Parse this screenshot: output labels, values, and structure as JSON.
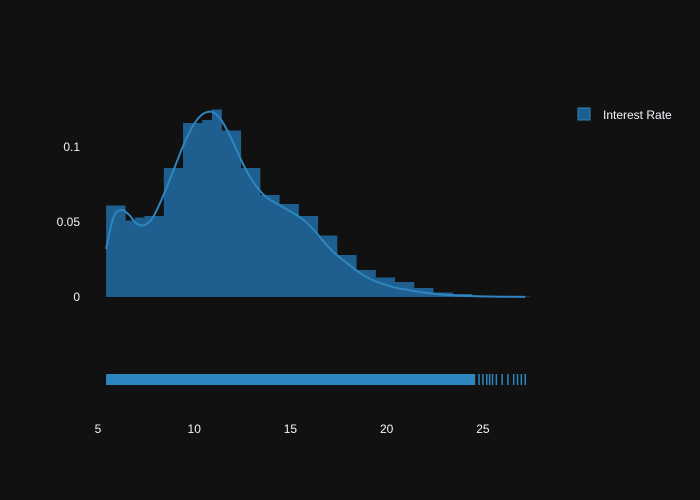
{
  "chart_data": {
    "type": "histogram",
    "title": "",
    "xlabel": "",
    "ylabel": "",
    "xlim": [
      5,
      27.5
    ],
    "ylim": [
      -0.012,
      0.135
    ],
    "grid": false,
    "legend_placement": "top-right",
    "background": "#111111",
    "series": [
      {
        "name": "Interest Rate",
        "color": "#1f5f8f",
        "line_color": "#2e86c1",
        "bins": [
          {
            "x0": 5.42,
            "x1": 6.42,
            "value": 0.061
          },
          {
            "x0": 6.42,
            "x1": 6.92,
            "value": 0.051
          },
          {
            "x0": 6.92,
            "x1": 7.42,
            "value": 0.053
          },
          {
            "x0": 7.42,
            "x1": 8.42,
            "value": 0.054
          },
          {
            "x0": 8.42,
            "x1": 9.42,
            "value": 0.086
          },
          {
            "x0": 9.42,
            "x1": 10.42,
            "value": 0.116
          },
          {
            "x0": 10.42,
            "x1": 10.92,
            "value": 0.118
          },
          {
            "x0": 10.92,
            "x1": 11.42,
            "value": 0.125
          },
          {
            "x0": 11.42,
            "x1": 12.42,
            "value": 0.111
          },
          {
            "x0": 12.42,
            "x1": 13.42,
            "value": 0.086
          },
          {
            "x0": 13.42,
            "x1": 14.42,
            "value": 0.068
          },
          {
            "x0": 14.42,
            "x1": 15.42,
            "value": 0.062
          },
          {
            "x0": 15.42,
            "x1": 16.42,
            "value": 0.054
          },
          {
            "x0": 16.42,
            "x1": 17.42,
            "value": 0.041
          },
          {
            "x0": 17.42,
            "x1": 18.42,
            "value": 0.028
          },
          {
            "x0": 18.42,
            "x1": 19.42,
            "value": 0.018
          },
          {
            "x0": 19.42,
            "x1": 20.42,
            "value": 0.013
          },
          {
            "x0": 20.42,
            "x1": 21.42,
            "value": 0.01
          },
          {
            "x0": 21.42,
            "x1": 22.42,
            "value": 0.006
          },
          {
            "x0": 22.42,
            "x1": 23.42,
            "value": 0.003
          },
          {
            "x0": 23.42,
            "x1": 24.42,
            "value": 0.002
          },
          {
            "x0": 24.42,
            "x1": 25.42,
            "value": 0.001
          },
          {
            "x0": 25.42,
            "x1": 26.42,
            "value": 0.0005
          },
          {
            "x0": 26.42,
            "x1": 27.42,
            "value": 0.0003
          }
        ],
        "kde": {
          "x": [
            5.42,
            5.8,
            6.2,
            6.6,
            7.0,
            7.4,
            7.8,
            8.2,
            8.6,
            9.0,
            9.4,
            9.8,
            10.2,
            10.6,
            11.0,
            11.4,
            11.8,
            12.2,
            12.6,
            13.0,
            13.4,
            13.8,
            14.2,
            14.6,
            15.0,
            15.4,
            15.8,
            16.2,
            16.6,
            17.0,
            17.5,
            18.0,
            18.5,
            19.0,
            19.5,
            20.0,
            20.5,
            21.0,
            21.5,
            22.0,
            22.5,
            23.0,
            24.0,
            25.0,
            26.0,
            27.2
          ],
          "y": [
            0.032,
            0.053,
            0.058,
            0.055,
            0.049,
            0.048,
            0.052,
            0.062,
            0.074,
            0.087,
            0.1,
            0.111,
            0.119,
            0.123,
            0.123,
            0.118,
            0.109,
            0.098,
            0.087,
            0.078,
            0.071,
            0.066,
            0.063,
            0.06,
            0.057,
            0.054,
            0.05,
            0.045,
            0.039,
            0.033,
            0.027,
            0.022,
            0.017,
            0.013,
            0.01,
            0.008,
            0.006,
            0.005,
            0.0038,
            0.0028,
            0.0021,
            0.0015,
            0.0008,
            0.0004,
            0.0002,
            0.0001
          ]
        },
        "rug": {
          "dense_range": [
            5.42,
            24.6
          ],
          "sparse_values": [
            24.8,
            25.0,
            25.2,
            25.35,
            25.5,
            25.7,
            26.0,
            26.3,
            26.6,
            26.8,
            27.0,
            27.2
          ]
        }
      }
    ],
    "xaxis_ticks": [
      5,
      10,
      15,
      20,
      25
    ],
    "xaxis_tick_labels": [
      "5",
      "10",
      "15",
      "20",
      "25"
    ],
    "yaxis_ticks": [
      0,
      0.05,
      0.1
    ],
    "yaxis_tick_labels": [
      "0",
      "0.05",
      "0.1"
    ]
  }
}
